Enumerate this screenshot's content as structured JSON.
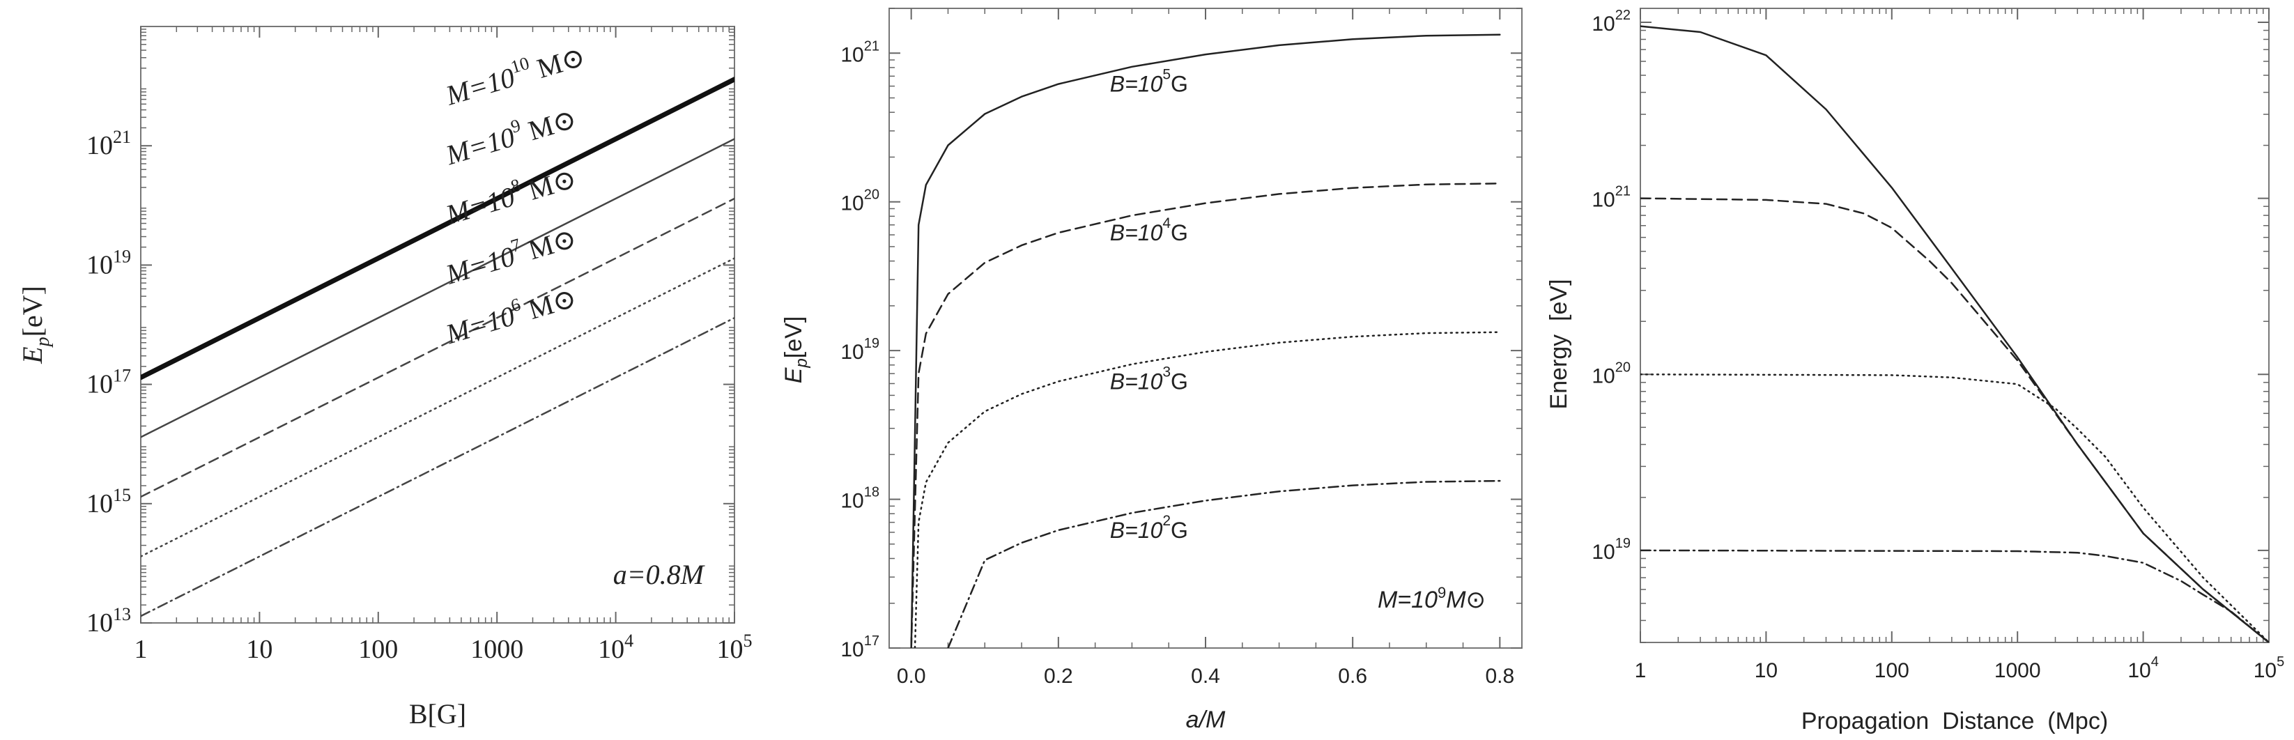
{
  "chart_data": [
    {
      "type": "line",
      "xlabel": "B[G]",
      "ylabel": {
        "main": "E",
        "sub": "p",
        "unit": "[eV]"
      },
      "x_scale": "log",
      "y_scale": "log",
      "xlim": [
        1,
        100000
      ],
      "ylim": [
        10000000000000.0,
        1e+23
      ],
      "x_ticks": [
        {
          "v": 1,
          "label": "1"
        },
        {
          "v": 10,
          "label": "10"
        },
        {
          "v": 100,
          "label": "100"
        },
        {
          "v": 1000,
          "label": "1000"
        },
        {
          "v": 10000,
          "label": "10",
          "exp": "4"
        },
        {
          "v": 100000,
          "label": "10",
          "exp": "5"
        }
      ],
      "y_ticks": [
        {
          "v": 10000000000000.0,
          "label": "10",
          "exp": "13"
        },
        {
          "v": 1000000000000000.0,
          "label": "10",
          "exp": "15"
        },
        {
          "v": 1e+17,
          "label": "10",
          "exp": "17"
        },
        {
          "v": 1e+19,
          "label": "10",
          "exp": "19"
        },
        {
          "v": 1e+21,
          "label": "10",
          "exp": "21"
        }
      ],
      "annotation": "a=0.8M",
      "series": [
        {
          "name": "M=10^10 M⊙",
          "label": {
            "pre": "M=10",
            "exp": "10",
            "post": " M⊙"
          },
          "style": "thick",
          "x": [
            1,
            100000
          ],
          "y": [
            1.3e+17,
            1.3e+22
          ]
        },
        {
          "name": "M=10^9 M⊙",
          "label": {
            "pre": "M=10",
            "exp": "9",
            "post": " M⊙"
          },
          "style": "solid",
          "x": [
            1,
            100000
          ],
          "y": [
            1.3e+16,
            1.3e+21
          ]
        },
        {
          "name": "M=10^8 M⊙",
          "label": {
            "pre": "M=10",
            "exp": "8",
            "post": " M⊙"
          },
          "style": "dashed",
          "x": [
            1,
            100000
          ],
          "y": [
            1300000000000000.0,
            1.3e+20
          ]
        },
        {
          "name": "M=10^7 M⊙",
          "label": {
            "pre": "M=10",
            "exp": "7",
            "post": " M⊙"
          },
          "style": "dotted",
          "x": [
            1,
            100000
          ],
          "y": [
            130000000000000.0,
            1.3e+19
          ]
        },
        {
          "name": "M=10^6 M⊙",
          "label": {
            "pre": "M=10",
            "exp": "6",
            "post": " M⊙"
          },
          "style": "dashdot",
          "x": [
            1,
            100000
          ],
          "y": [
            13000000000000.0,
            1.3e+18
          ]
        }
      ]
    },
    {
      "type": "line",
      "xlabel": "a/M",
      "ylabel": {
        "main": "E",
        "sub": "p",
        "unit": "[eV]"
      },
      "x_scale": "linear",
      "y_scale": "log",
      "xlim": [
        -0.03,
        0.83
      ],
      "ylim": [
        1e+17,
        2e+21
      ],
      "x_ticks": [
        {
          "v": 0.0,
          "label": "0.0"
        },
        {
          "v": 0.2,
          "label": "0.2"
        },
        {
          "v": 0.4,
          "label": "0.4"
        },
        {
          "v": 0.6,
          "label": "0.6"
        },
        {
          "v": 0.8,
          "label": "0.8"
        }
      ],
      "y_ticks": [
        {
          "v": 1e+17,
          "label": "10",
          "exp": "17"
        },
        {
          "v": 1e+18,
          "label": "10",
          "exp": "18"
        },
        {
          "v": 1e+19,
          "label": "10",
          "exp": "19"
        },
        {
          "v": 1e+20,
          "label": "10",
          "exp": "20"
        },
        {
          "v": 1e+21,
          "label": "10",
          "exp": "21"
        }
      ],
      "annotation": {
        "pre": "M=10",
        "exp": "9",
        "post": "M⊙"
      },
      "series": [
        {
          "name": "B=10^5G",
          "label": {
            "pre": "B=10",
            "exp": "5",
            "post": "G"
          },
          "style": "solid",
          "x": [
            0.0,
            0.01,
            0.02,
            0.05,
            0.1,
            0.15,
            0.2,
            0.3,
            0.4,
            0.5,
            0.6,
            0.7,
            0.8
          ],
          "y": [
            1e+17,
            7e+19,
            1.3e+20,
            2.4e+20,
            3.9e+20,
            5.1e+20,
            6.2e+20,
            8.1e+20,
            9.8e+20,
            1.13e+21,
            1.24e+21,
            1.31e+21,
            1.33e+21
          ]
        },
        {
          "name": "B=10^4G",
          "label": {
            "pre": "B=10",
            "exp": "4",
            "post": "G"
          },
          "style": "dashed",
          "x": [
            0.0,
            0.01,
            0.02,
            0.05,
            0.1,
            0.15,
            0.2,
            0.3,
            0.4,
            0.5,
            0.6,
            0.7,
            0.8
          ],
          "y": [
            1e+17,
            7e+18,
            1.3e+19,
            2.4e+19,
            3.9e+19,
            5.1e+19,
            6.2e+19,
            8.1e+19,
            9.8e+19,
            1.13e+20,
            1.24e+20,
            1.31e+20,
            1.33e+20
          ]
        },
        {
          "name": "B=10^3G",
          "label": {
            "pre": "B=10",
            "exp": "3",
            "post": "G"
          },
          "style": "dotted",
          "x": [
            0.005,
            0.01,
            0.02,
            0.05,
            0.1,
            0.15,
            0.2,
            0.3,
            0.4,
            0.5,
            0.6,
            0.7,
            0.8
          ],
          "y": [
            1e+17,
            7e+17,
            1.3e+18,
            2.4e+18,
            3.9e+18,
            5.1e+18,
            6.2e+18,
            8.1e+18,
            9.8e+18,
            1.13e+19,
            1.24e+19,
            1.31e+19,
            1.33e+19
          ]
        },
        {
          "name": "B=10^2G",
          "label": {
            "pre": "B=10",
            "exp": "2",
            "post": "G"
          },
          "style": "dashdot",
          "x": [
            0.05,
            0.1,
            0.15,
            0.2,
            0.3,
            0.4,
            0.5,
            0.6,
            0.7,
            0.8
          ],
          "y": [
            1e+17,
            3.9e+17,
            5.1e+17,
            6.2e+17,
            8.1e+17,
            9.8e+17,
            1.13e+18,
            1.24e+18,
            1.31e+18,
            1.33e+18
          ]
        }
      ]
    },
    {
      "type": "line",
      "xlabel": "Propagation  Distance  (Mpc)",
      "ylabel": "Energy  [eV]",
      "x_scale": "log",
      "y_scale": "log",
      "xlim": [
        1,
        100000
      ],
      "ylim": [
        3e+18,
        1.2e+22
      ],
      "x_ticks": [
        {
          "v": 1,
          "label": "1"
        },
        {
          "v": 10,
          "label": "10"
        },
        {
          "v": 100,
          "label": "100"
        },
        {
          "v": 1000,
          "label": "1000"
        },
        {
          "v": 10000,
          "label": "10",
          "exp": "4"
        },
        {
          "v": 100000,
          "label": "10",
          "exp": "5"
        }
      ],
      "y_ticks": [
        {
          "v": 1e+19,
          "label": "10",
          "exp": "19"
        },
        {
          "v": 1e+20,
          "label": "10",
          "exp": "20"
        },
        {
          "v": 1e+21,
          "label": "10",
          "exp": "21"
        },
        {
          "v": 1e+22,
          "label": "10",
          "exp": "22"
        }
      ],
      "series": [
        {
          "style": "solid",
          "x": [
            1,
            3,
            10,
            30,
            100,
            300,
            1000,
            3000,
            10000,
            30000,
            100000
          ],
          "y": [
            9.5e+21,
            8.8e+21,
            6.5e+21,
            3.2e+21,
            1.15e+21,
            4e+20,
            1.25e+20,
            4e+19,
            1.25e+19,
            6e+18,
            3e+18
          ]
        },
        {
          "style": "dashed",
          "x": [
            1,
            10,
            30,
            60,
            100,
            200,
            300,
            1000,
            3000,
            10000,
            30000,
            100000
          ],
          "y": [
            1e+21,
            9.8e+20,
            9.3e+20,
            8.2e+20,
            6.8e+20,
            4.4e+20,
            3.3e+20,
            1.2e+20,
            4e+19,
            1.25e+19,
            6e+18,
            3e+18
          ]
        },
        {
          "style": "dotted",
          "x": [
            1,
            100,
            300,
            1000,
            2000,
            3000,
            5000,
            10000,
            30000,
            100000
          ],
          "y": [
            1e+20,
            9.9e+19,
            9.6e+19,
            8.8e+19,
            6.4e+19,
            4.9e+19,
            3.4e+19,
            1.75e+19,
            7e+18,
            3e+18
          ]
        },
        {
          "style": "dashdot",
          "x": [
            1,
            1000,
            3000,
            5000,
            10000,
            20000,
            30000,
            50000,
            100000
          ],
          "y": [
            1e+19,
            9.9e+18,
            9.7e+18,
            9.3e+18,
            8.5e+18,
            6.7e+18,
            5.6e+18,
            4.5e+18,
            3e+18
          ]
        }
      ]
    }
  ]
}
